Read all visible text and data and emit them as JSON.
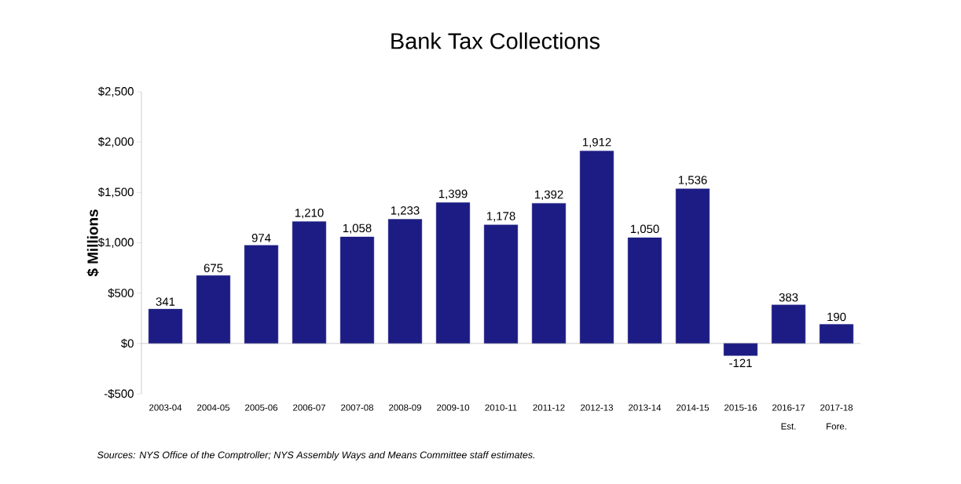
{
  "chart_data": {
    "type": "bar",
    "title": "Bank Tax Collections",
    "ylabel": "$ Millions",
    "categories": [
      "2003-04",
      "2004-05",
      "2005-06",
      "2006-07",
      "2007-08",
      "2008-09",
      "2009-10",
      "2010-11",
      "2011-12",
      "2012-13",
      "2013-14",
      "2014-15",
      "2015-16",
      "2016-17 Est.",
      "2017-18 Fore."
    ],
    "values": [
      341,
      675,
      974,
      1210,
      1058,
      1233,
      1399,
      1178,
      1392,
      1912,
      1050,
      1536,
      -121,
      383,
      190
    ],
    "color": "#1c1c84",
    "ylim": [
      -500,
      2500
    ],
    "yticks": [
      {
        "value": -500,
        "label": "-$500"
      },
      {
        "value": 0,
        "label": "$0"
      },
      {
        "value": 500,
        "label": "$500"
      },
      {
        "value": 1000,
        "label": "$1,000"
      },
      {
        "value": 1500,
        "label": "$1,500"
      },
      {
        "value": 2000,
        "label": "$2,000"
      },
      {
        "value": 2500,
        "label": "$2,500"
      }
    ],
    "value_labels": [
      "341",
      "675",
      "974",
      "1,210",
      "1,058",
      "1,233",
      "1,399",
      "1,178",
      "1,392",
      "1,912",
      "1,050",
      "1,536",
      "-121",
      "383",
      "190"
    ],
    "annotations": [
      "Sources:  NYS Office of the Comptroller;  NYS Assembly Ways and Means Committee staff estimates."
    ]
  }
}
